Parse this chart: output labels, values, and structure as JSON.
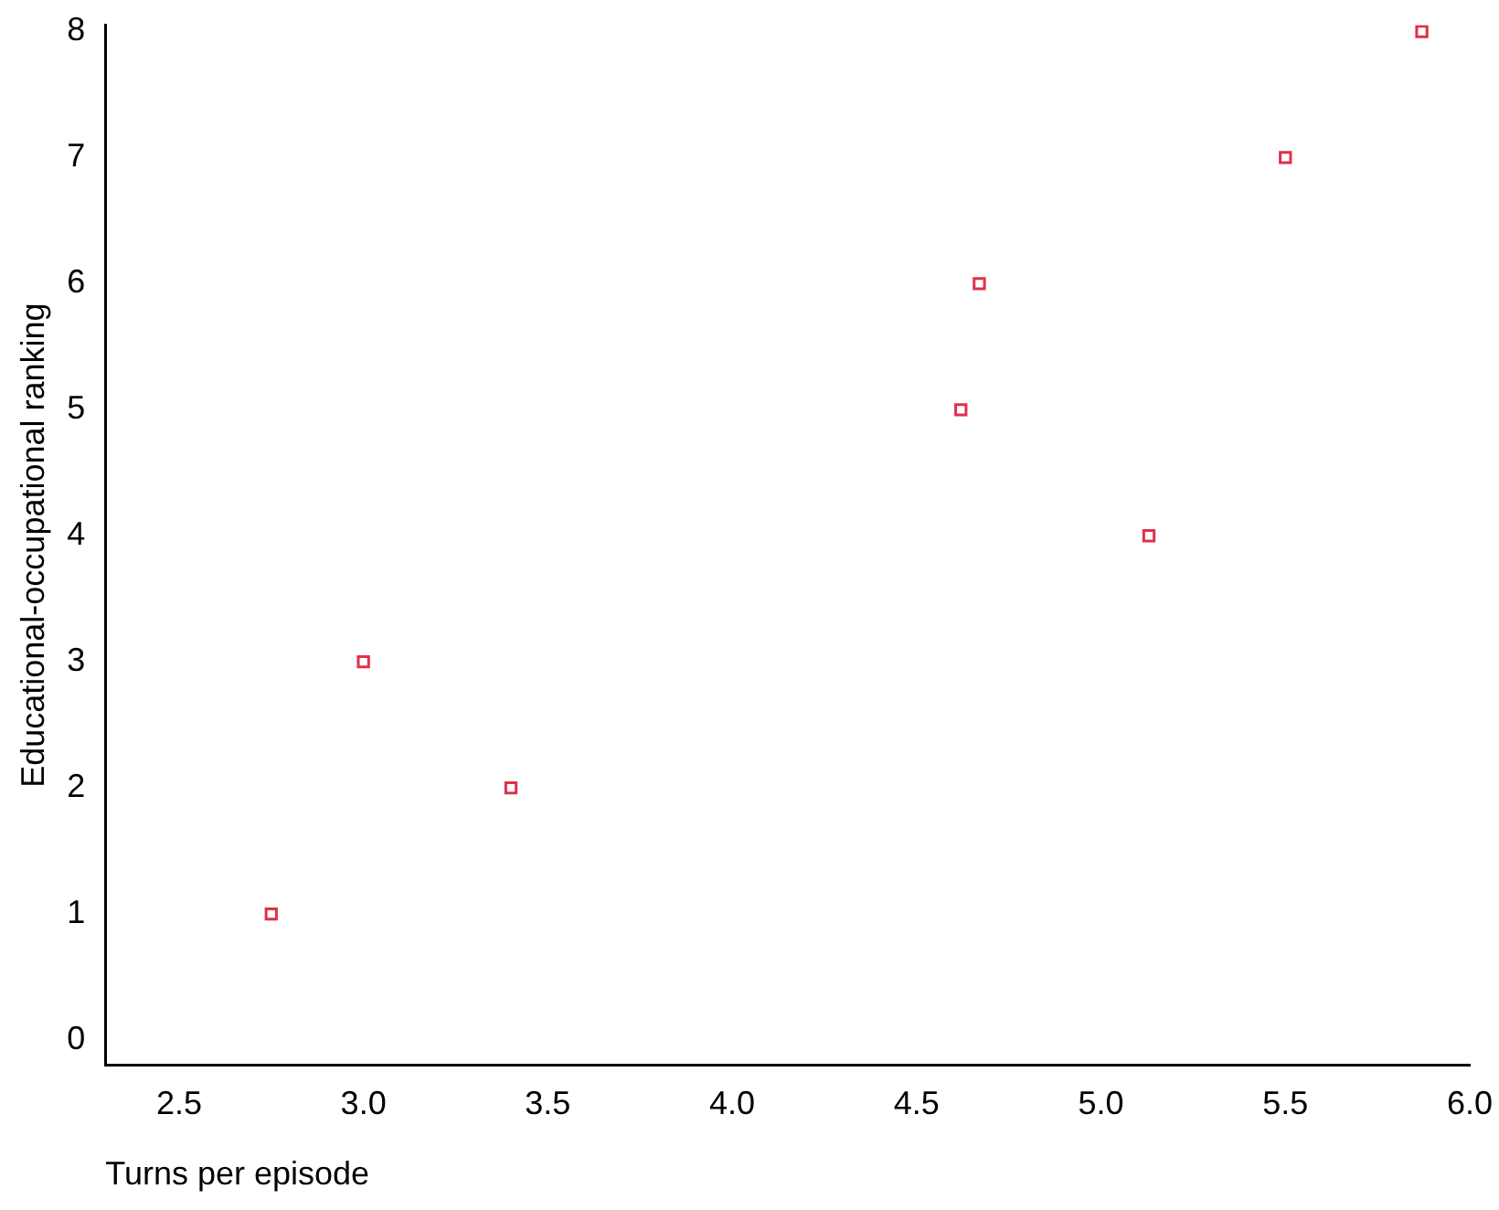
{
  "chart_data": {
    "type": "scatter",
    "xlabel": "Turns per episode",
    "ylabel": "Educational-occupational ranking",
    "x": [
      2.75,
      3.0,
      3.4,
      4.62,
      4.67,
      5.13,
      5.5,
      5.87
    ],
    "values": [
      1,
      3,
      2,
      5,
      6,
      4,
      7,
      8
    ],
    "color": "#e0304a",
    "marker": "square",
    "xlim": [
      2.3,
      6.0
    ],
    "xticks": [
      {
        "value": 2.5,
        "label": "2.5"
      },
      {
        "value": 3,
        "label": "3.0"
      },
      {
        "value": 3.5,
        "label": "3.5"
      },
      {
        "value": 4,
        "label": "4.0"
      },
      {
        "value": 4.5,
        "label": "4.5"
      },
      {
        "value": 5,
        "label": "5.0"
      },
      {
        "value": 5.5,
        "label": "5.5"
      },
      {
        "value": 6,
        "label": "6.0"
      }
    ],
    "ylim": [
      -0.2,
      8.05
    ],
    "yticks": [
      0,
      1,
      2,
      3,
      4,
      5,
      6,
      7,
      8
    ],
    "grid": false,
    "legend": false
  }
}
